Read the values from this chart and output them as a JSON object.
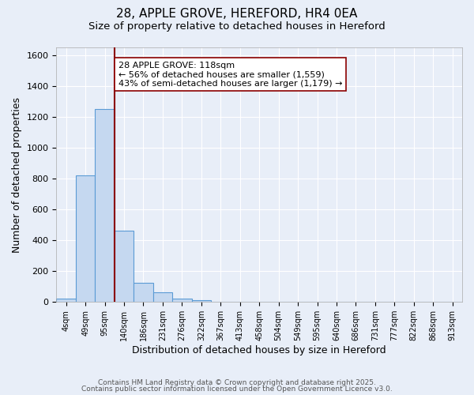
{
  "title": "28, APPLE GROVE, HEREFORD, HR4 0EA",
  "subtitle": "Size of property relative to detached houses in Hereford",
  "xlabel": "Distribution of detached houses by size in Hereford",
  "ylabel": "Number of detached properties",
  "bin_labels": [
    "4sqm",
    "49sqm",
    "95sqm",
    "140sqm",
    "186sqm",
    "231sqm",
    "276sqm",
    "322sqm",
    "367sqm",
    "413sqm",
    "458sqm",
    "504sqm",
    "549sqm",
    "595sqm",
    "640sqm",
    "686sqm",
    "731sqm",
    "777sqm",
    "822sqm",
    "868sqm",
    "913sqm"
  ],
  "bar_values": [
    20,
    820,
    1250,
    460,
    125,
    65,
    22,
    10,
    0,
    0,
    0,
    0,
    0,
    0,
    0,
    0,
    0,
    0,
    0,
    0,
    0
  ],
  "bar_color": "#c5d8f0",
  "bar_edge_color": "#5b9bd5",
  "background_color": "#e8eef8",
  "grid_color": "#ffffff",
  "vline_color": "#8b0000",
  "annotation_text": "28 APPLE GROVE: 118sqm\n← 56% of detached houses are smaller (1,559)\n43% of semi-detached houses are larger (1,179) →",
  "annotation_box_edge": "#8b0000",
  "annotation_fontsize": 8.0,
  "ylim": [
    0,
    1650
  ],
  "yticks": [
    0,
    200,
    400,
    600,
    800,
    1000,
    1200,
    1400,
    1600
  ],
  "footer1": "Contains HM Land Registry data © Crown copyright and database right 2025.",
  "footer2": "Contains public sector information licensed under the Open Government Licence v3.0.",
  "title_fontsize": 11,
  "subtitle_fontsize": 9.5,
  "xlabel_fontsize": 9,
  "ylabel_fontsize": 9,
  "footer_fontsize": 6.5
}
